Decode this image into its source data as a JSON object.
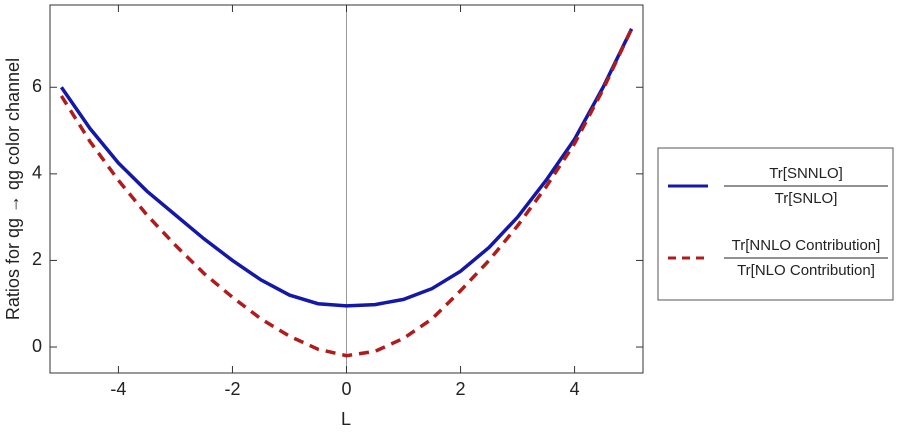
{
  "chart_data": {
    "type": "line",
    "x_label": "L",
    "y_label": "Ratios for qg → qg color channel",
    "x": [
      -5,
      -4.5,
      -4,
      -3.5,
      -3,
      -2.5,
      -2,
      -1.5,
      -1,
      -0.5,
      0,
      0.5,
      1,
      1.5,
      2,
      2.5,
      3,
      3.5,
      4,
      4.5,
      5
    ],
    "series": [
      {
        "name": "Tr[SNNLO]",
        "denominator": "Tr[SNLO]",
        "color": "#1418a8",
        "dash": false,
        "values": [
          6.0,
          5.05,
          4.25,
          3.6,
          3.05,
          2.5,
          2.0,
          1.55,
          1.2,
          1.0,
          0.95,
          0.98,
          1.1,
          1.35,
          1.75,
          2.3,
          3.0,
          3.85,
          4.8,
          6.0,
          7.35
        ]
      },
      {
        "name": "Tr[NNLO Contribution]",
        "denominator": "Tr[NLO Contribution]",
        "color": "#b01c1c",
        "dash": true,
        "values": [
          5.8,
          4.75,
          3.85,
          3.05,
          2.35,
          1.7,
          1.15,
          0.65,
          0.25,
          -0.05,
          -0.2,
          -0.1,
          0.2,
          0.65,
          1.3,
          2.0,
          2.8,
          3.7,
          4.7,
          5.95,
          7.35
        ]
      }
    ],
    "xlim": [
      -5.2,
      5.2
    ],
    "ylim": [
      -0.6,
      7.9
    ],
    "xticks": [
      -4,
      -2,
      0,
      2,
      4
    ],
    "yticks": [
      0,
      2,
      4,
      6
    ],
    "legend": "right"
  }
}
